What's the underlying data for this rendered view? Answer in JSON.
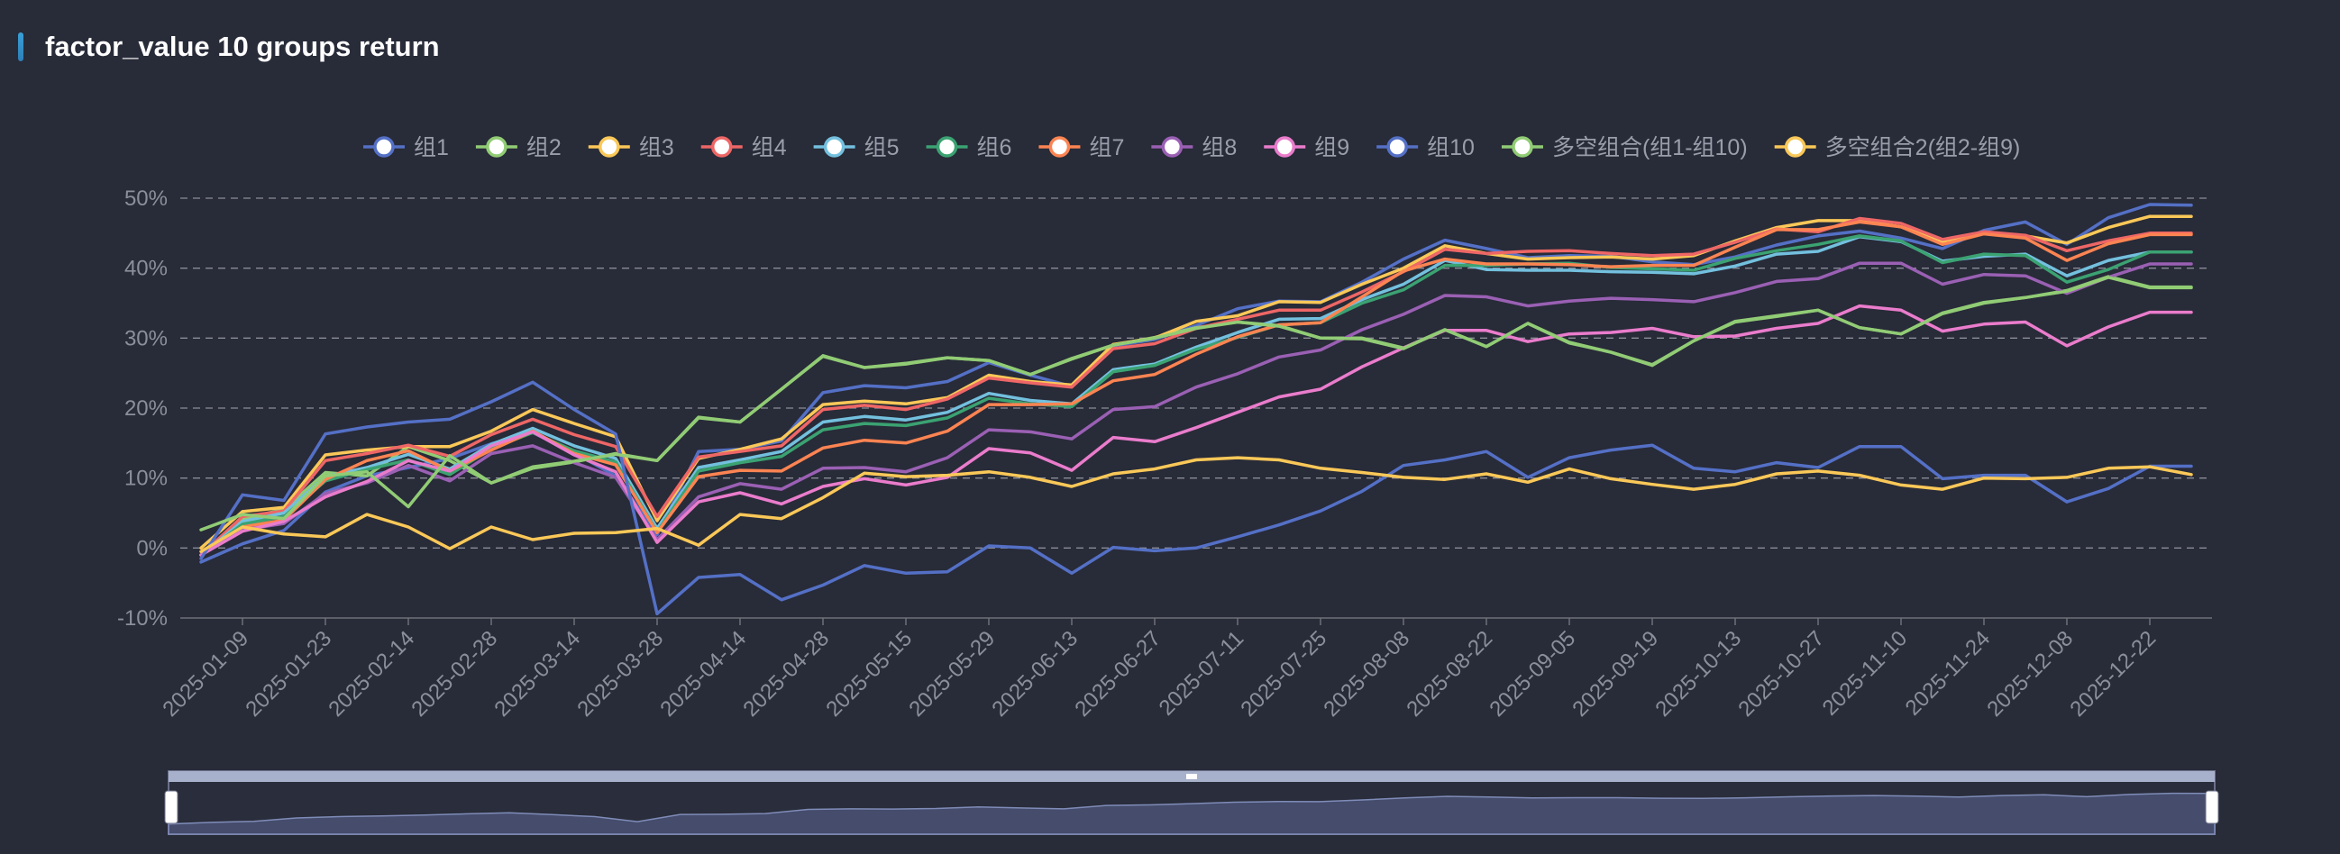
{
  "title": "factor_value 10 groups return",
  "chart_data": {
    "type": "line",
    "title": "factor_value 10 groups return",
    "ylim": [
      -10,
      50
    ],
    "yticks": [
      -10,
      0,
      10,
      20,
      30,
      40,
      50
    ],
    "ytick_labels": [
      "-10%",
      "0%",
      "10%",
      "20%",
      "30%",
      "40%",
      "50%"
    ],
    "grid": true,
    "legend_position": "top",
    "x": [
      "2025-01-03",
      "2025-01-09",
      "2025-01-16",
      "2025-01-23",
      "2025-02-07",
      "2025-02-14",
      "2025-02-21",
      "2025-02-28",
      "2025-03-07",
      "2025-03-14",
      "2025-03-21",
      "2025-03-28",
      "2025-04-03",
      "2025-04-14",
      "2025-04-18",
      "2025-04-28",
      "2025-05-09",
      "2025-05-15",
      "2025-05-23",
      "2025-05-29",
      "2025-06-06",
      "2025-06-13",
      "2025-06-20",
      "2025-06-27",
      "2025-07-04",
      "2025-07-11",
      "2025-07-18",
      "2025-07-25",
      "2025-08-01",
      "2025-08-08",
      "2025-08-15",
      "2025-08-22",
      "2025-08-29",
      "2025-09-05",
      "2025-09-12",
      "2025-09-19",
      "2025-09-26",
      "2025-10-13",
      "2025-10-17",
      "2025-10-27",
      "2025-10-31",
      "2025-11-10",
      "2025-11-14",
      "2025-11-24",
      "2025-11-28",
      "2025-12-08",
      "2025-12-12",
      "2025-12-22",
      "2025-12-26"
    ],
    "x_tick_labels": [
      "2025-01-09",
      "2025-01-23",
      "2025-02-14",
      "2025-02-28",
      "2025-03-14",
      "2025-03-28",
      "2025-04-14",
      "2025-04-28",
      "2025-05-15",
      "2025-05-29",
      "2025-06-13",
      "2025-06-27",
      "2025-07-11",
      "2025-07-25",
      "2025-08-08",
      "2025-08-22",
      "2025-09-05",
      "2025-09-19",
      "2025-10-13",
      "2025-10-27",
      "2025-11-10",
      "2025-11-24",
      "2025-12-08",
      "2025-12-22"
    ],
    "series": [
      {
        "name": "组1",
        "color": "#5470c6",
        "values": [
          -2,
          0.6,
          2.5,
          8,
          10.3,
          11.5,
          12.8,
          14.9,
          16.5,
          13.6,
          10.3,
          1.9,
          13.8,
          14.1,
          15.3,
          22.2,
          23.2,
          22.9,
          23.8,
          26.5,
          24.7,
          23.1,
          28.9,
          29.8,
          31.8,
          34.2,
          35.3,
          35.2,
          38,
          41.3,
          44,
          42.8,
          41.5,
          41.8,
          41.7,
          40.9,
          40.5,
          41.6,
          43.3,
          44.6,
          45.3,
          44.3,
          42.8,
          45.4,
          46.6,
          43.4,
          47.2,
          49.1,
          49
        ]
      },
      {
        "name": "组2",
        "color": "#91cc75",
        "values": [
          -1,
          4.2,
          5.5,
          10.8,
          10.3,
          14.5,
          12.5,
          9.3,
          11.4,
          12.3,
          13.5,
          12.5,
          18.7,
          18,
          22.7,
          27.5,
          25.8,
          26.4,
          27.2,
          26.8,
          24.8,
          27.1,
          29,
          30.1,
          31.5,
          32.3,
          31.8,
          30,
          30,
          28.6,
          31.2,
          28.8,
          32.1,
          29.4,
          28,
          26.2,
          29.6,
          32.4,
          33.2,
          34,
          31.5,
          30.6,
          33.6,
          35.1,
          35.8,
          36.8,
          38.8,
          37.3,
          37.3
        ]
      },
      {
        "name": "组3",
        "color": "#fac858",
        "values": [
          0,
          5.2,
          5.8,
          13.3,
          14,
          14.5,
          14.5,
          16.7,
          19.8,
          17.8,
          15.9,
          3.9,
          12.8,
          14.1,
          15.6,
          20.5,
          21,
          20.6,
          21.5,
          24.7,
          23.8,
          23.3,
          29.1,
          30,
          32.4,
          33.2,
          35.2,
          35.1,
          37.7,
          40,
          43.2,
          42.1,
          41.3,
          41.5,
          41.6,
          41.3,
          41.8,
          43.9,
          45.8,
          46.8,
          46.8,
          45.9,
          43.8,
          45,
          44.6,
          43.6,
          45.8,
          47.4,
          47.4
        ]
      },
      {
        "name": "组4",
        "color": "#ee6666",
        "values": [
          -1,
          4.5,
          5.3,
          12.5,
          13.5,
          14.7,
          13.1,
          16.2,
          18.4,
          16.2,
          14.5,
          4.5,
          13,
          13.8,
          14.6,
          19.8,
          20.4,
          19.8,
          21.3,
          24.3,
          23.6,
          23,
          28.5,
          29.2,
          31.4,
          32.7,
          34,
          34,
          36.6,
          39.5,
          42.7,
          42.1,
          42.4,
          42.5,
          42.1,
          41.8,
          42,
          43.7,
          45.6,
          45.2,
          47.1,
          46.4,
          44.1,
          45.2,
          44.7,
          42.5,
          43.9,
          45,
          45
        ]
      },
      {
        "name": "组5",
        "color": "#73c0de",
        "values": [
          -1,
          3.8,
          5,
          10.2,
          11.5,
          13.4,
          11.3,
          14.8,
          17.1,
          14.6,
          12.8,
          2.8,
          11.5,
          12.6,
          13.8,
          18,
          18.8,
          18.3,
          19.4,
          22.1,
          21.1,
          20.6,
          25.5,
          26.3,
          28.7,
          30.8,
          32.7,
          32.8,
          35.5,
          37.7,
          41.1,
          39.8,
          39.7,
          39.7,
          39.5,
          39.4,
          39.2,
          40.3,
          42,
          42.4,
          44.5,
          43.8,
          41,
          41.7,
          42,
          38.9,
          41.1,
          42.3,
          42.3
        ]
      },
      {
        "name": "组6",
        "color": "#3ba272",
        "values": [
          -1,
          3.4,
          4.5,
          9.6,
          11.2,
          12.6,
          10.5,
          14.2,
          16.5,
          13.9,
          12.3,
          2.3,
          11,
          12.2,
          13.1,
          16.9,
          17.8,
          17.5,
          18.6,
          21.4,
          20.6,
          20.2,
          25.2,
          26.1,
          28.4,
          30.1,
          31.9,
          32.2,
          35,
          36.9,
          40.4,
          40.4,
          40.6,
          40.7,
          40.1,
          39.9,
          39.7,
          41.4,
          42.5,
          43.4,
          44.6,
          43.9,
          40.8,
          42,
          41.8,
          38,
          39.8,
          42.3,
          42.3
        ]
      },
      {
        "name": "组7",
        "color": "#fc8452",
        "values": [
          -1,
          3,
          4,
          9.8,
          12.5,
          13.9,
          11,
          14,
          16.7,
          13.5,
          11.9,
          2.2,
          10.2,
          11.1,
          11,
          14.3,
          15.4,
          15,
          16.7,
          20.5,
          20.5,
          20.6,
          23.9,
          24.8,
          27.7,
          30.2,
          31.9,
          32.2,
          35.9,
          39.6,
          41.3,
          40.6,
          40.6,
          40.5,
          40.2,
          40.4,
          40.4,
          43,
          45.5,
          45.5,
          46.6,
          45.9,
          43.4,
          44.9,
          44.3,
          41.1,
          43.5,
          44.8,
          44.8
        ]
      },
      {
        "name": "组8",
        "color": "#9a60b4",
        "values": [
          -1,
          2.6,
          3.5,
          7.8,
          9.3,
          11.8,
          9.6,
          13.5,
          14.6,
          12.2,
          10.1,
          1.2,
          7.3,
          9.2,
          8.4,
          11.4,
          11.5,
          10.9,
          12.9,
          16.9,
          16.6,
          15.6,
          19.8,
          20.2,
          23,
          24.9,
          27.3,
          28.3,
          31.2,
          33.4,
          36.1,
          35.9,
          34.6,
          35.3,
          35.7,
          35.5,
          35.2,
          36.5,
          38.1,
          38.5,
          40.7,
          40.7,
          37.7,
          39.1,
          38.9,
          36.4,
          38.7,
          40.6,
          40.6
        ]
      },
      {
        "name": "组9",
        "color": "#ea7ccc",
        "values": [
          -1,
          2.4,
          3.8,
          7.3,
          9.5,
          12.5,
          11,
          14.6,
          16.6,
          13.3,
          10.9,
          0.8,
          6.6,
          7.9,
          6.3,
          8.8,
          9.9,
          9,
          10.1,
          14.2,
          13.6,
          11.1,
          15.8,
          15.2,
          17.2,
          19.4,
          21.6,
          22.7,
          25.9,
          28.6,
          31.1,
          31.1,
          29.5,
          30.6,
          30.8,
          31.4,
          30.2,
          30.3,
          31.4,
          32.1,
          34.6,
          34,
          31,
          32,
          32.3,
          28.9,
          31.6,
          33.7,
          33.7
        ]
      },
      {
        "name": "组10",
        "color": "#5470c6",
        "values": [
          -1.5,
          7.6,
          6.8,
          16.3,
          17.3,
          18,
          18.4,
          20.9,
          23.7,
          19.8,
          16.3,
          -9.4,
          -4.2,
          -3.8,
          -7.4,
          -5.3,
          -2.5,
          -3.6,
          -3.4,
          0.3,
          0,
          -3.6,
          0.1,
          -0.4,
          0,
          1.6,
          3.3,
          5.3,
          8.1,
          11.8,
          12.6,
          13.8,
          10.1,
          12.9,
          14,
          14.7,
          11.4,
          10.9,
          12.2,
          11.5,
          14.5,
          14.5,
          9.9,
          10.4,
          10.4,
          6.6,
          8.5,
          11.7,
          11.7
        ]
      },
      {
        "name": "多空组合(组1-组10)",
        "color": "#91cc75",
        "values": [
          2.6,
          4.8,
          4.2,
          10.3,
          10.9,
          5.9,
          13.2,
          9.3,
          11.6,
          12.4,
          13.4,
          12.5,
          18.6,
          18,
          22.7,
          27.4,
          25.8,
          26.3,
          27.2,
          26.8,
          24.8,
          27,
          29,
          30,
          31.4,
          32.3,
          31.7,
          30,
          29.9,
          28.5,
          31.2,
          28.8,
          32.1,
          29.3,
          28,
          26.1,
          29.6,
          32.3,
          33.1,
          34,
          31.5,
          30.6,
          33.5,
          35,
          35.8,
          36.7,
          38.7,
          37.2,
          37.2
        ]
      },
      {
        "name": "多空组合2(组2-组9)",
        "color": "#fac858",
        "values": [
          -0.5,
          3,
          2,
          1.6,
          4.8,
          3,
          -0.1,
          3,
          1.2,
          2.1,
          2.2,
          2.8,
          0.4,
          4.8,
          4.2,
          7.2,
          10.7,
          10.2,
          10.4,
          10.9,
          10.1,
          8.8,
          10.6,
          11.3,
          12.6,
          12.9,
          12.6,
          11.4,
          10.8,
          10.1,
          9.8,
          10.6,
          9.4,
          11.3,
          9.9,
          9.1,
          8.4,
          9.1,
          10.6,
          11,
          10.4,
          9,
          8.4,
          10,
          9.9,
          10.1,
          11.4,
          11.6,
          10.5
        ]
      }
    ]
  }
}
